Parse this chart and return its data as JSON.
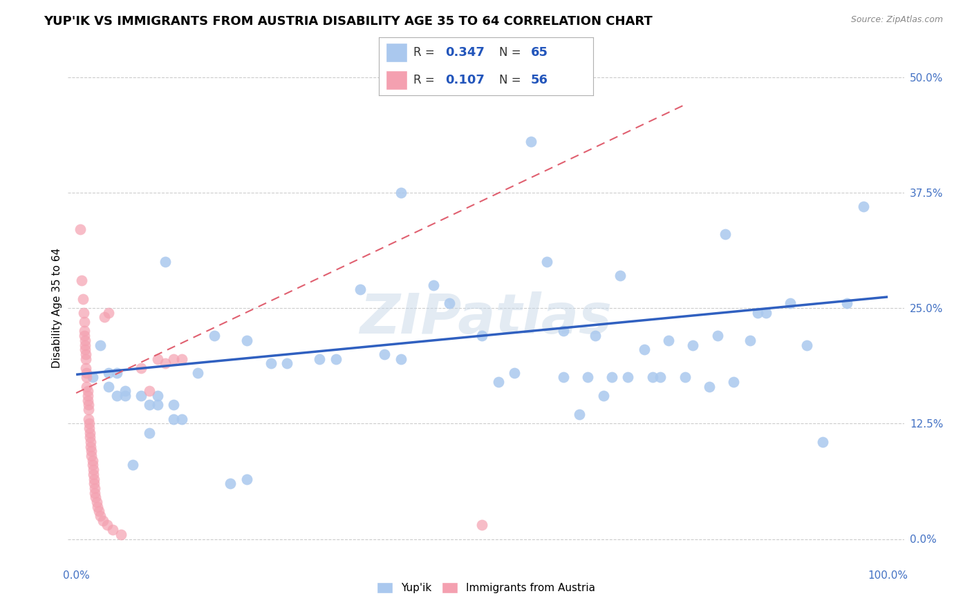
{
  "title": "YUP'IK VS IMMIGRANTS FROM AUSTRIA DISABILITY AGE 35 TO 64 CORRELATION CHART",
  "source": "Source: ZipAtlas.com",
  "ylabel_label": "Disability Age 35 to 64",
  "xlim": [
    -0.01,
    1.02
  ],
  "ylim": [
    -0.03,
    0.53
  ],
  "yticks": [
    0.0,
    0.125,
    0.25,
    0.375,
    0.5
  ],
  "ytick_labels": [
    "0.0%",
    "12.5%",
    "25.0%",
    "37.5%",
    "50.0%"
  ],
  "xticks": [
    0.0,
    1.0
  ],
  "xtick_labels": [
    "0.0%",
    "100.0%"
  ],
  "legend_r1_label": "R = ",
  "legend_r1_val": "0.347",
  "legend_n1_label": "N = ",
  "legend_n1_val": "65",
  "legend_r2_label": "R = ",
  "legend_r2_val": "0.107",
  "legend_n2_label": "N = ",
  "legend_n2_val": "56",
  "blue_color": "#aac8ee",
  "pink_color": "#f4a0b0",
  "line_blue": "#3060c0",
  "line_pink": "#e06070",
  "watermark": "ZIPatlas",
  "blue_scatter": [
    [
      0.02,
      0.175
    ],
    [
      0.03,
      0.21
    ],
    [
      0.04,
      0.165
    ],
    [
      0.04,
      0.18
    ],
    [
      0.05,
      0.155
    ],
    [
      0.05,
      0.18
    ],
    [
      0.06,
      0.155
    ],
    [
      0.06,
      0.16
    ],
    [
      0.07,
      0.08
    ],
    [
      0.08,
      0.155
    ],
    [
      0.09,
      0.145
    ],
    [
      0.09,
      0.115
    ],
    [
      0.1,
      0.145
    ],
    [
      0.1,
      0.155
    ],
    [
      0.11,
      0.3
    ],
    [
      0.12,
      0.145
    ],
    [
      0.12,
      0.13
    ],
    [
      0.13,
      0.13
    ],
    [
      0.15,
      0.18
    ],
    [
      0.17,
      0.22
    ],
    [
      0.19,
      0.06
    ],
    [
      0.21,
      0.215
    ],
    [
      0.21,
      0.065
    ],
    [
      0.24,
      0.19
    ],
    [
      0.26,
      0.19
    ],
    [
      0.3,
      0.195
    ],
    [
      0.32,
      0.195
    ],
    [
      0.35,
      0.27
    ],
    [
      0.38,
      0.2
    ],
    [
      0.4,
      0.375
    ],
    [
      0.4,
      0.195
    ],
    [
      0.44,
      0.275
    ],
    [
      0.46,
      0.255
    ],
    [
      0.5,
      0.22
    ],
    [
      0.52,
      0.17
    ],
    [
      0.54,
      0.18
    ],
    [
      0.56,
      0.43
    ],
    [
      0.58,
      0.3
    ],
    [
      0.6,
      0.225
    ],
    [
      0.6,
      0.175
    ],
    [
      0.62,
      0.135
    ],
    [
      0.63,
      0.175
    ],
    [
      0.64,
      0.22
    ],
    [
      0.65,
      0.155
    ],
    [
      0.66,
      0.175
    ],
    [
      0.67,
      0.285
    ],
    [
      0.68,
      0.175
    ],
    [
      0.7,
      0.205
    ],
    [
      0.71,
      0.175
    ],
    [
      0.72,
      0.175
    ],
    [
      0.73,
      0.215
    ],
    [
      0.75,
      0.175
    ],
    [
      0.76,
      0.21
    ],
    [
      0.78,
      0.165
    ],
    [
      0.79,
      0.22
    ],
    [
      0.8,
      0.33
    ],
    [
      0.81,
      0.17
    ],
    [
      0.83,
      0.215
    ],
    [
      0.84,
      0.245
    ],
    [
      0.85,
      0.245
    ],
    [
      0.88,
      0.255
    ],
    [
      0.9,
      0.21
    ],
    [
      0.92,
      0.105
    ],
    [
      0.95,
      0.255
    ],
    [
      0.97,
      0.36
    ]
  ],
  "pink_scatter": [
    [
      0.005,
      0.335
    ],
    [
      0.007,
      0.28
    ],
    [
      0.008,
      0.26
    ],
    [
      0.009,
      0.245
    ],
    [
      0.01,
      0.235
    ],
    [
      0.01,
      0.225
    ],
    [
      0.01,
      0.22
    ],
    [
      0.011,
      0.215
    ],
    [
      0.011,
      0.21
    ],
    [
      0.011,
      0.205
    ],
    [
      0.012,
      0.2
    ],
    [
      0.012,
      0.195
    ],
    [
      0.012,
      0.185
    ],
    [
      0.013,
      0.18
    ],
    [
      0.013,
      0.175
    ],
    [
      0.013,
      0.165
    ],
    [
      0.014,
      0.16
    ],
    [
      0.014,
      0.155
    ],
    [
      0.014,
      0.15
    ],
    [
      0.015,
      0.145
    ],
    [
      0.015,
      0.14
    ],
    [
      0.015,
      0.13
    ],
    [
      0.016,
      0.125
    ],
    [
      0.016,
      0.12
    ],
    [
      0.017,
      0.115
    ],
    [
      0.017,
      0.11
    ],
    [
      0.018,
      0.105
    ],
    [
      0.018,
      0.1
    ],
    [
      0.019,
      0.095
    ],
    [
      0.019,
      0.09
    ],
    [
      0.02,
      0.085
    ],
    [
      0.02,
      0.08
    ],
    [
      0.021,
      0.075
    ],
    [
      0.021,
      0.07
    ],
    [
      0.022,
      0.065
    ],
    [
      0.022,
      0.06
    ],
    [
      0.023,
      0.055
    ],
    [
      0.023,
      0.05
    ],
    [
      0.024,
      0.045
    ],
    [
      0.025,
      0.04
    ],
    [
      0.026,
      0.035
    ],
    [
      0.028,
      0.03
    ],
    [
      0.03,
      0.025
    ],
    [
      0.033,
      0.02
    ],
    [
      0.038,
      0.015
    ],
    [
      0.045,
      0.01
    ],
    [
      0.055,
      0.005
    ],
    [
      0.08,
      0.185
    ],
    [
      0.09,
      0.16
    ],
    [
      0.1,
      0.195
    ],
    [
      0.11,
      0.19
    ],
    [
      0.12,
      0.195
    ],
    [
      0.13,
      0.195
    ],
    [
      0.5,
      0.015
    ],
    [
      0.04,
      0.245
    ],
    [
      0.035,
      0.24
    ]
  ],
  "blue_line_x": [
    0.0,
    1.0
  ],
  "blue_line_y": [
    0.178,
    0.262
  ],
  "pink_line_x": [
    0.0,
    0.75
  ],
  "pink_line_y": [
    0.158,
    0.47
  ],
  "grid_color": "#cccccc",
  "background_color": "#ffffff",
  "title_fontsize": 13,
  "axis_label_fontsize": 11,
  "tick_fontsize": 11,
  "legend_fontsize": 12,
  "legend_val_fontsize": 13
}
